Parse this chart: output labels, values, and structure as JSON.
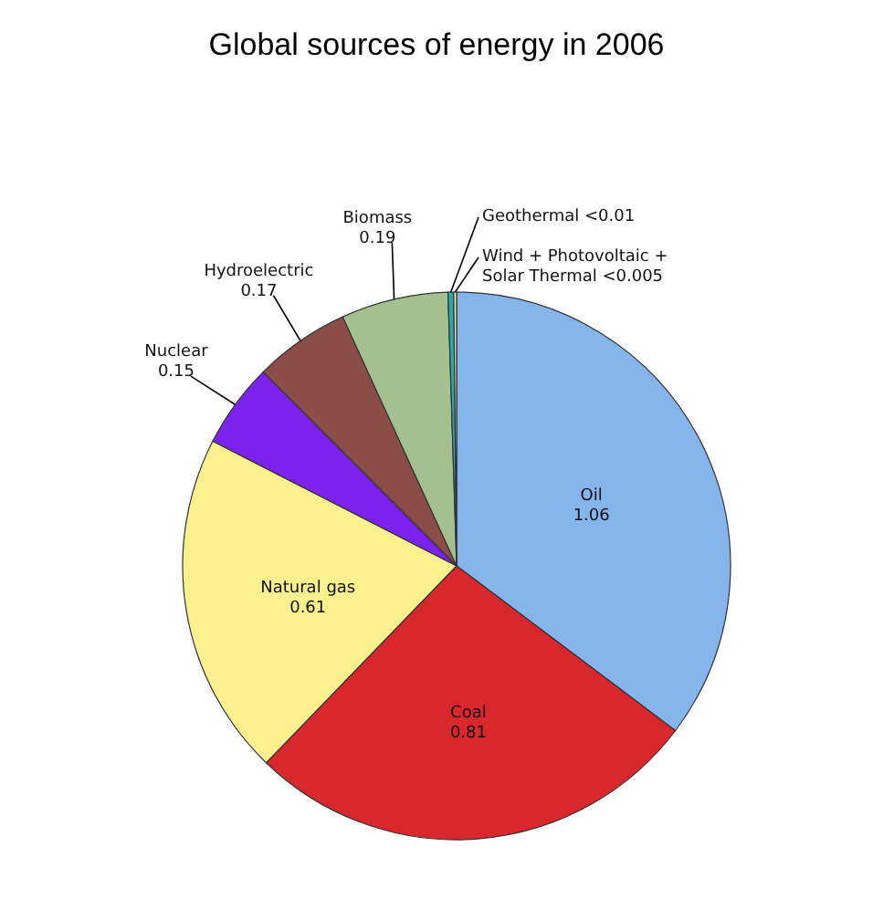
{
  "chart_data": {
    "type": "pie",
    "title": "Global sources of energy in 2006",
    "categories": [
      "Oil",
      "Coal",
      "Natural gas",
      "Nuclear",
      "Hydroelectric",
      "Biomass",
      "Geothermal",
      "Wind + Photovoltaic + Solar Thermal"
    ],
    "values": [
      1.06,
      0.81,
      0.61,
      0.15,
      0.17,
      0.19,
      0.01,
      0.005
    ],
    "value_labels": [
      "1.06",
      "0.81",
      "0.61",
      "0.15",
      "0.17",
      "0.19",
      "<0.01",
      "<0.005"
    ],
    "colors": [
      "#86b5ec",
      "#d8282d",
      "#fbf08e",
      "#7b22ee",
      "#8a4d47",
      "#a3c08e",
      "#2aa6b0",
      "#e8eea0"
    ]
  }
}
